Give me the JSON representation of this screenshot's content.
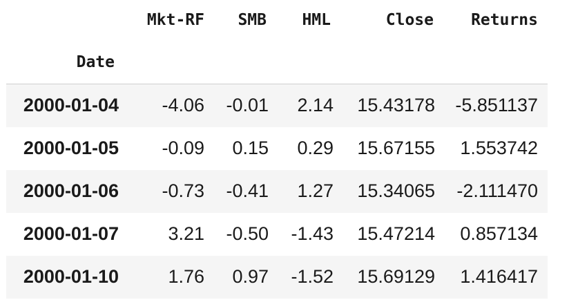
{
  "table": {
    "columns": [
      "Mkt-RF",
      "SMB",
      "HML",
      "Close",
      "Returns"
    ],
    "index_name": "Date",
    "rows": [
      {
        "date": "2000-01-04",
        "values": [
          "-4.06",
          "-0.01",
          "2.14",
          "15.43178",
          "-5.851137"
        ]
      },
      {
        "date": "2000-01-05",
        "values": [
          "-0.09",
          "0.15",
          "0.29",
          "15.67155",
          "1.553742"
        ]
      },
      {
        "date": "2000-01-06",
        "values": [
          "-0.73",
          "-0.41",
          "1.27",
          "15.34065",
          "-2.111470"
        ]
      },
      {
        "date": "2000-01-07",
        "values": [
          "3.21",
          "-0.50",
          "-1.43",
          "15.47214",
          "0.857134"
        ]
      },
      {
        "date": "2000-01-10",
        "values": [
          "1.76",
          "0.97",
          "-1.52",
          "15.69129",
          "1.416417"
        ]
      }
    ]
  }
}
